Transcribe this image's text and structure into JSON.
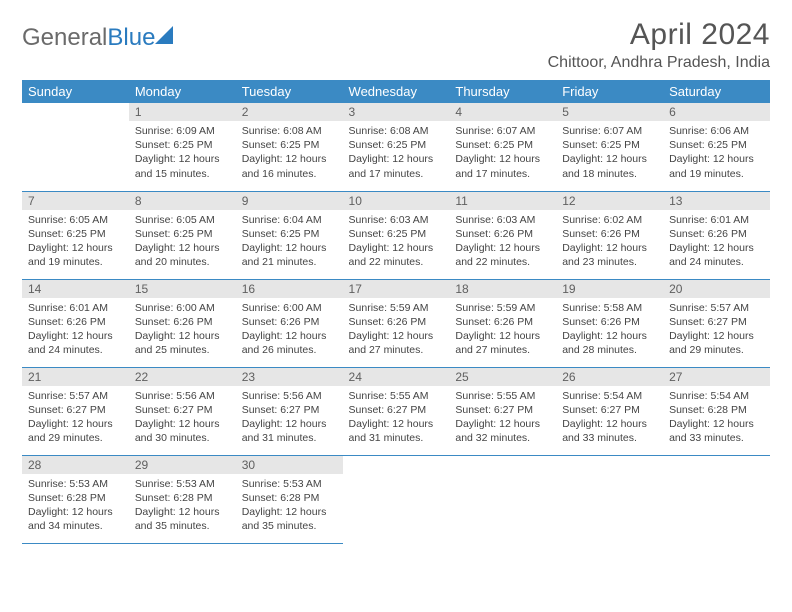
{
  "brand": {
    "part1": "General",
    "part2": "Blue"
  },
  "title": "April 2024",
  "location": "Chittoor, Andhra Pradesh, India",
  "colors": {
    "header_bg": "#3b8ac4",
    "header_text": "#ffffff",
    "daynum_bg": "#e6e6e6",
    "daynum_text": "#606060",
    "body_text": "#444444",
    "rule": "#3b8ac4"
  },
  "weekdays": [
    "Sunday",
    "Monday",
    "Tuesday",
    "Wednesday",
    "Thursday",
    "Friday",
    "Saturday"
  ],
  "weeks": [
    [
      null,
      {
        "n": "1",
        "sr": "Sunrise: 6:09 AM",
        "ss": "Sunset: 6:25 PM",
        "d1": "Daylight: 12 hours",
        "d2": "and 15 minutes."
      },
      {
        "n": "2",
        "sr": "Sunrise: 6:08 AM",
        "ss": "Sunset: 6:25 PM",
        "d1": "Daylight: 12 hours",
        "d2": "and 16 minutes."
      },
      {
        "n": "3",
        "sr": "Sunrise: 6:08 AM",
        "ss": "Sunset: 6:25 PM",
        "d1": "Daylight: 12 hours",
        "d2": "and 17 minutes."
      },
      {
        "n": "4",
        "sr": "Sunrise: 6:07 AM",
        "ss": "Sunset: 6:25 PM",
        "d1": "Daylight: 12 hours",
        "d2": "and 17 minutes."
      },
      {
        "n": "5",
        "sr": "Sunrise: 6:07 AM",
        "ss": "Sunset: 6:25 PM",
        "d1": "Daylight: 12 hours",
        "d2": "and 18 minutes."
      },
      {
        "n": "6",
        "sr": "Sunrise: 6:06 AM",
        "ss": "Sunset: 6:25 PM",
        "d1": "Daylight: 12 hours",
        "d2": "and 19 minutes."
      }
    ],
    [
      {
        "n": "7",
        "sr": "Sunrise: 6:05 AM",
        "ss": "Sunset: 6:25 PM",
        "d1": "Daylight: 12 hours",
        "d2": "and 19 minutes."
      },
      {
        "n": "8",
        "sr": "Sunrise: 6:05 AM",
        "ss": "Sunset: 6:25 PM",
        "d1": "Daylight: 12 hours",
        "d2": "and 20 minutes."
      },
      {
        "n": "9",
        "sr": "Sunrise: 6:04 AM",
        "ss": "Sunset: 6:25 PM",
        "d1": "Daylight: 12 hours",
        "d2": "and 21 minutes."
      },
      {
        "n": "10",
        "sr": "Sunrise: 6:03 AM",
        "ss": "Sunset: 6:25 PM",
        "d1": "Daylight: 12 hours",
        "d2": "and 22 minutes."
      },
      {
        "n": "11",
        "sr": "Sunrise: 6:03 AM",
        "ss": "Sunset: 6:26 PM",
        "d1": "Daylight: 12 hours",
        "d2": "and 22 minutes."
      },
      {
        "n": "12",
        "sr": "Sunrise: 6:02 AM",
        "ss": "Sunset: 6:26 PM",
        "d1": "Daylight: 12 hours",
        "d2": "and 23 minutes."
      },
      {
        "n": "13",
        "sr": "Sunrise: 6:01 AM",
        "ss": "Sunset: 6:26 PM",
        "d1": "Daylight: 12 hours",
        "d2": "and 24 minutes."
      }
    ],
    [
      {
        "n": "14",
        "sr": "Sunrise: 6:01 AM",
        "ss": "Sunset: 6:26 PM",
        "d1": "Daylight: 12 hours",
        "d2": "and 24 minutes."
      },
      {
        "n": "15",
        "sr": "Sunrise: 6:00 AM",
        "ss": "Sunset: 6:26 PM",
        "d1": "Daylight: 12 hours",
        "d2": "and 25 minutes."
      },
      {
        "n": "16",
        "sr": "Sunrise: 6:00 AM",
        "ss": "Sunset: 6:26 PM",
        "d1": "Daylight: 12 hours",
        "d2": "and 26 minutes."
      },
      {
        "n": "17",
        "sr": "Sunrise: 5:59 AM",
        "ss": "Sunset: 6:26 PM",
        "d1": "Daylight: 12 hours",
        "d2": "and 27 minutes."
      },
      {
        "n": "18",
        "sr": "Sunrise: 5:59 AM",
        "ss": "Sunset: 6:26 PM",
        "d1": "Daylight: 12 hours",
        "d2": "and 27 minutes."
      },
      {
        "n": "19",
        "sr": "Sunrise: 5:58 AM",
        "ss": "Sunset: 6:26 PM",
        "d1": "Daylight: 12 hours",
        "d2": "and 28 minutes."
      },
      {
        "n": "20",
        "sr": "Sunrise: 5:57 AM",
        "ss": "Sunset: 6:27 PM",
        "d1": "Daylight: 12 hours",
        "d2": "and 29 minutes."
      }
    ],
    [
      {
        "n": "21",
        "sr": "Sunrise: 5:57 AM",
        "ss": "Sunset: 6:27 PM",
        "d1": "Daylight: 12 hours",
        "d2": "and 29 minutes."
      },
      {
        "n": "22",
        "sr": "Sunrise: 5:56 AM",
        "ss": "Sunset: 6:27 PM",
        "d1": "Daylight: 12 hours",
        "d2": "and 30 minutes."
      },
      {
        "n": "23",
        "sr": "Sunrise: 5:56 AM",
        "ss": "Sunset: 6:27 PM",
        "d1": "Daylight: 12 hours",
        "d2": "and 31 minutes."
      },
      {
        "n": "24",
        "sr": "Sunrise: 5:55 AM",
        "ss": "Sunset: 6:27 PM",
        "d1": "Daylight: 12 hours",
        "d2": "and 31 minutes."
      },
      {
        "n": "25",
        "sr": "Sunrise: 5:55 AM",
        "ss": "Sunset: 6:27 PM",
        "d1": "Daylight: 12 hours",
        "d2": "and 32 minutes."
      },
      {
        "n": "26",
        "sr": "Sunrise: 5:54 AM",
        "ss": "Sunset: 6:27 PM",
        "d1": "Daylight: 12 hours",
        "d2": "and 33 minutes."
      },
      {
        "n": "27",
        "sr": "Sunrise: 5:54 AM",
        "ss": "Sunset: 6:28 PM",
        "d1": "Daylight: 12 hours",
        "d2": "and 33 minutes."
      }
    ],
    [
      {
        "n": "28",
        "sr": "Sunrise: 5:53 AM",
        "ss": "Sunset: 6:28 PM",
        "d1": "Daylight: 12 hours",
        "d2": "and 34 minutes."
      },
      {
        "n": "29",
        "sr": "Sunrise: 5:53 AM",
        "ss": "Sunset: 6:28 PM",
        "d1": "Daylight: 12 hours",
        "d2": "and 35 minutes."
      },
      {
        "n": "30",
        "sr": "Sunrise: 5:53 AM",
        "ss": "Sunset: 6:28 PM",
        "d1": "Daylight: 12 hours",
        "d2": "and 35 minutes."
      },
      null,
      null,
      null,
      null
    ]
  ]
}
